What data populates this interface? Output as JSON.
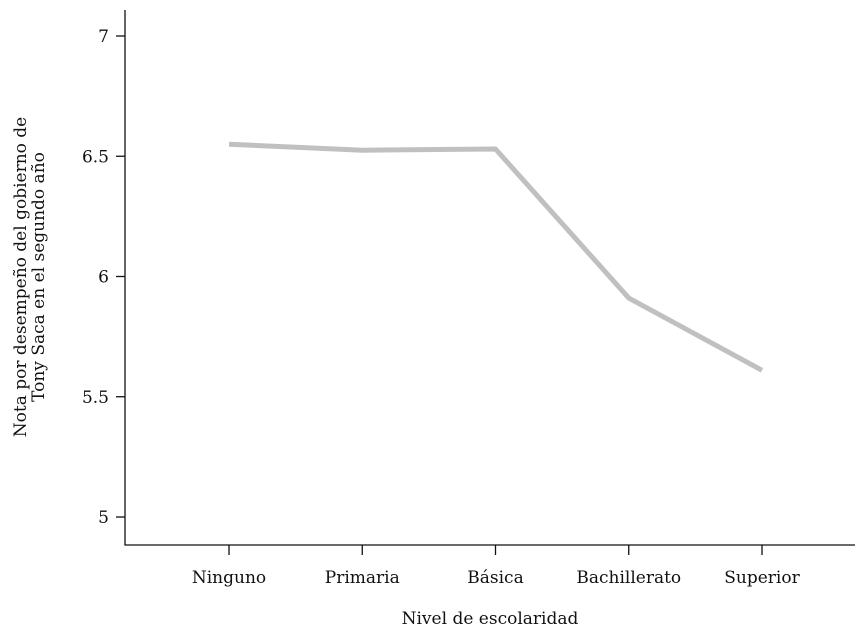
{
  "chart_data": {
    "type": "line",
    "categories": [
      "Ninguno",
      "Primaria",
      "Básica",
      "Bachillerato",
      "Superior"
    ],
    "series": [
      {
        "values": [
          6.55,
          6.525,
          6.53,
          5.91,
          5.61
        ],
        "color": "#c0c0c0"
      }
    ],
    "xlabel": "Nivel de escolaridad",
    "ylabel_lines": [
      "Nota por desempeño del gobierno de",
      "Tony Saca en el segundo año"
    ],
    "ylim": [
      4.93,
      7.12
    ],
    "yticks": [
      5,
      5.5,
      6,
      6.5,
      7
    ],
    "ytick_labels": [
      "5",
      "5.5",
      "6",
      "6.5",
      "7"
    ],
    "grid": false,
    "axis_color": "#111111"
  }
}
